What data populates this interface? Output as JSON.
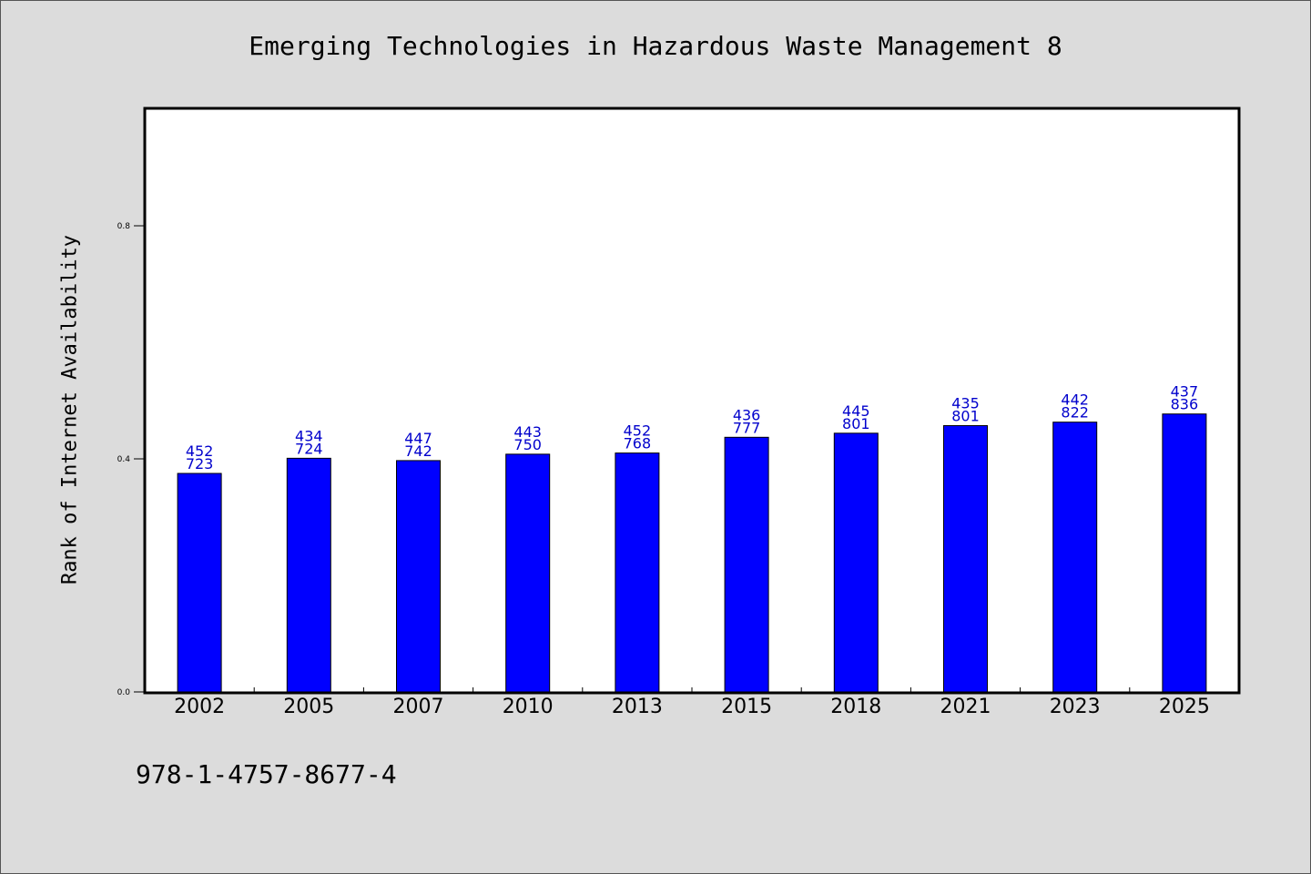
{
  "chart_data": {
    "type": "bar",
    "title": "Emerging Technologies in Hazardous Waste Management 8",
    "xlabel": "",
    "ylabel": "Rank of Internet Availability",
    "categories": [
      "2002",
      "2005",
      "2007",
      "2010",
      "2013",
      "2015",
      "2018",
      "2021",
      "2023",
      "2025"
    ],
    "values": [
      0.375,
      0.401,
      0.397,
      0.408,
      0.41,
      0.437,
      0.444,
      0.457,
      0.463,
      0.477
    ],
    "bar_labels_top": [
      "452",
      "434",
      "447",
      "443",
      "452",
      "436",
      "445",
      "435",
      "442",
      "437"
    ],
    "bar_labels_bottom": [
      "723",
      "724",
      "742",
      "750",
      "768",
      "777",
      "801",
      "801",
      "822",
      "836"
    ],
    "yticks": [
      "0.0",
      "0.4",
      "0.8"
    ],
    "ytick_values": [
      0.0,
      0.4,
      0.8
    ],
    "ylim": [
      0,
      1.0
    ],
    "grid": false,
    "colors": {
      "bar": "#0000ff",
      "label": "#0000cc",
      "background": "#dcdcdc",
      "plot_bg": "#ffffff"
    }
  },
  "footer": {
    "isbn": "978-1-4757-8677-4"
  }
}
